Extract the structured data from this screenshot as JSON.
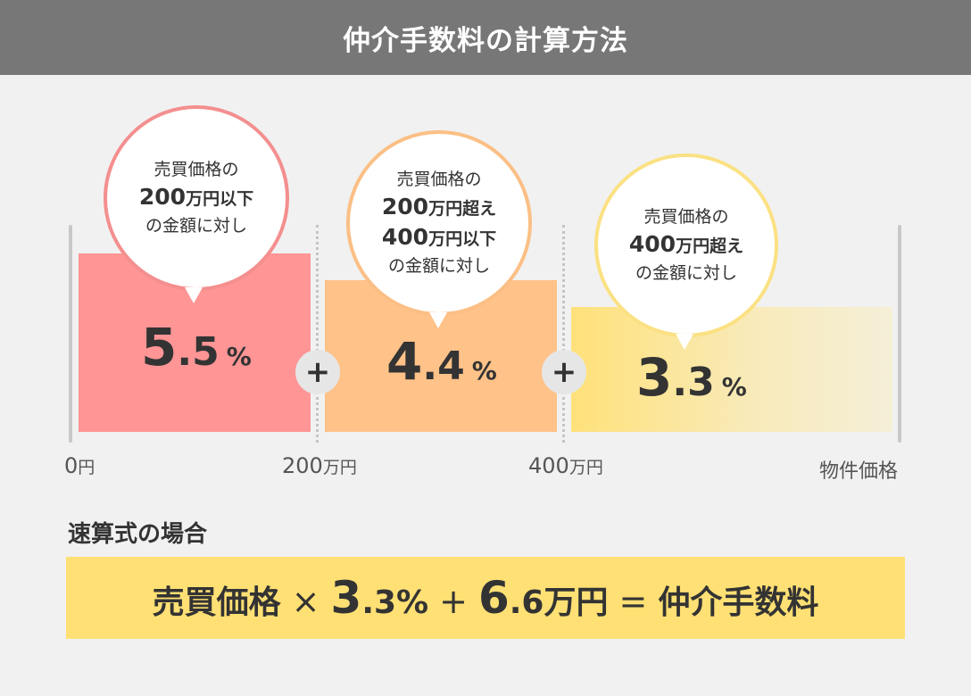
{
  "header": {
    "title": "仲介手数料の計算方法"
  },
  "tiers": [
    {
      "bubble_line1": "売買価格の",
      "bubble_big1_num": "200",
      "bubble_big1_unit": "万円以下",
      "bubble_line3": "の金額に対し",
      "rate_whole": "5",
      "rate_frac": ".5",
      "rate_pct": "%",
      "rate_value": 5.5
    },
    {
      "bubble_line1": "売買価格の",
      "bubble_big1_num": "200",
      "bubble_big1_unit": "万円超え",
      "bubble_big2_num": "400",
      "bubble_big2_unit": "万円以下",
      "bubble_line3": "の金額に対し",
      "rate_whole": "4",
      "rate_frac": ".4",
      "rate_pct": "%",
      "rate_value": 4.4
    },
    {
      "bubble_line1": "売買価格の",
      "bubble_big1_num": "400",
      "bubble_big1_unit": "万円超え",
      "bubble_line3": "の金額に対し",
      "rate_whole": "3",
      "rate_frac": ".3",
      "rate_pct": "%",
      "rate_value": 3.3
    }
  ],
  "plus_symbol": "+",
  "axis": {
    "tick0_num": "0",
    "tick0_unit": "円",
    "tick1_num": "200",
    "tick1_unit": "万円",
    "tick2_num": "400",
    "tick2_unit": "万円",
    "end_label": "物件価格"
  },
  "quick": {
    "title": "速算式の場合",
    "f_price": "売買価格",
    "f_times": "×",
    "f_rate_whole": "3",
    "f_rate_rest": ".3%",
    "f_plus": "+",
    "f_add_whole": "6",
    "f_add_rest": ".6万円",
    "f_equals": "=",
    "f_result": "仲介手数料"
  },
  "colors": {
    "header_bg": "#777777",
    "tier1": "#ff9595",
    "tier2": "#ffc288",
    "tier3": "#ffe17a",
    "formula_bg": "#ffe074"
  }
}
